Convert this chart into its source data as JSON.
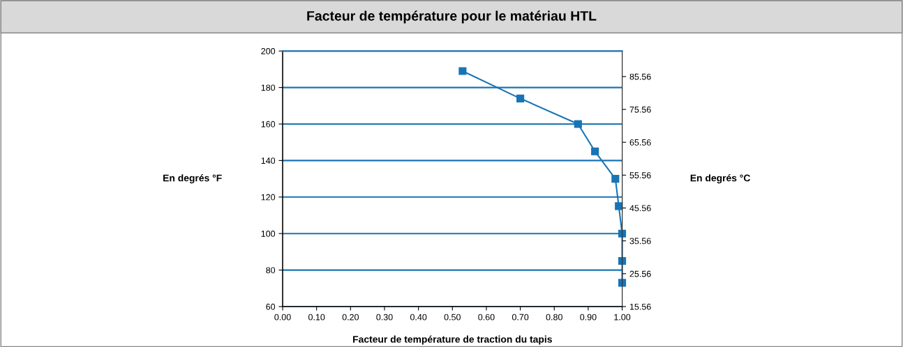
{
  "chart_data": {
    "type": "line",
    "title": "Facteur de température pour le matériau HTL",
    "xlabel": "Facteur de température de traction du tapis",
    "ylabel": "En degrés °F",
    "y2label": "En degrés °C",
    "series": [
      {
        "color": "#1874b4",
        "x": [
          0.53,
          0.7,
          0.87,
          0.92,
          0.98,
          0.99,
          1.0,
          1.0,
          1.0
        ],
        "values": [
          189,
          174,
          160,
          145,
          130,
          115,
          100,
          85,
          73
        ]
      }
    ],
    "xlim": [
      0,
      1
    ],
    "xticks": [
      {
        "value": 0,
        "label": "0.00"
      },
      {
        "value": 0.1,
        "label": "0.10"
      },
      {
        "value": 0.2,
        "label": "0.20"
      },
      {
        "value": 0.3,
        "label": "0.30"
      },
      {
        "value": 0.4,
        "label": "0.40"
      },
      {
        "value": 0.5,
        "label": "0.50"
      },
      {
        "value": 0.6,
        "label": "0.60"
      },
      {
        "value": 0.7,
        "label": "0.70"
      },
      {
        "value": 0.8,
        "label": "0.80"
      },
      {
        "value": 0.9,
        "label": "0.90"
      },
      {
        "value": 1.0,
        "label": "1.00"
      }
    ],
    "ylim": [
      60,
      200
    ],
    "yticks": [
      60,
      80,
      100,
      120,
      140,
      160,
      180,
      200
    ],
    "y2lim": [
      15.56,
      93.33
    ],
    "y2ticks": [
      15.56,
      25.56,
      35.56,
      45.56,
      55.56,
      65.56,
      75.56,
      85.56
    ],
    "grid": "y",
    "marker": "square",
    "line_style": "solid"
  }
}
